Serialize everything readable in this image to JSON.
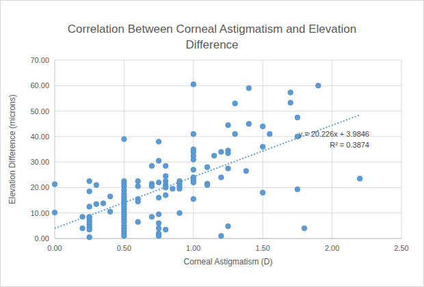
{
  "chart_data": {
    "type": "scatter",
    "title": "Correlation Between Corneal Astigmatism and Elevation Difference",
    "x_label": "Corneal Astigmatism (D)",
    "y_label": "Elevation Difference (microns)",
    "xlim": [
      0,
      2.5
    ],
    "ylim": [
      0,
      70
    ],
    "xticks": [
      {
        "value": 0,
        "label": "0.00"
      },
      {
        "value": 0.5,
        "label": "0.50"
      },
      {
        "value": 1,
        "label": "1.00"
      },
      {
        "value": 1.5,
        "label": "1.50"
      },
      {
        "value": 2,
        "label": "2.00"
      },
      {
        "value": 2.5,
        "label": "2.50"
      }
    ],
    "yticks": [
      {
        "value": 0,
        "label": "0.00"
      },
      {
        "value": 10,
        "label": "10.00"
      },
      {
        "value": 20,
        "label": "20.00"
      },
      {
        "value": 30,
        "label": "30.00"
      },
      {
        "value": 40,
        "label": "40.00"
      },
      {
        "value": 50,
        "label": "50.00"
      },
      {
        "value": 60,
        "label": "60.00"
      },
      {
        "value": 70,
        "label": "70.00"
      }
    ],
    "grid": true,
    "annotations": [
      "y = 20.226x + 3.9846",
      "R² = 0.3874"
    ],
    "series": [
      {
        "type": "scatter",
        "marker": "circle",
        "color": "#5b9bd5",
        "x": [
          0,
          0,
          0.2,
          0.2,
          0.25,
          0.25,
          0.25,
          0.25,
          0.25,
          0.25,
          0.25,
          0.25,
          0.25,
          0.25,
          0.3,
          0.3,
          0.35,
          0.4,
          0.4,
          0.5,
          0.5,
          0.5,
          0.5,
          0.5,
          0.5,
          0.5,
          0.5,
          0.5,
          0.5,
          0.5,
          0.5,
          0.5,
          0.5,
          0.5,
          0.5,
          0.5,
          0.5,
          0.5,
          0.5,
          0.5,
          0.5,
          0.6,
          0.6,
          0.6,
          0.6,
          0.6,
          0.7,
          0.7,
          0.7,
          0.7,
          0.75,
          0.75,
          0.75,
          0.75,
          0.75,
          0.75,
          0.75,
          0.75,
          0.75,
          0.8,
          0.8,
          0.8,
          0.8,
          0.8,
          0.8,
          0.8,
          0.85,
          0.9,
          0.9,
          0.9,
          0.9,
          0.9,
          1,
          1,
          1,
          1,
          1,
          1,
          1,
          1,
          1,
          1,
          1,
          1.1,
          1.1,
          1.1,
          1.15,
          1.2,
          1.2,
          1.2,
          1.25,
          1.25,
          1.25,
          1.25,
          1.25,
          1.3,
          1.3,
          1.38,
          1.4,
          1.4,
          1.5,
          1.5,
          1.5,
          1.55,
          1.7,
          1.7,
          1.75,
          1.75,
          1.75,
          1.8,
          1.9,
          2.2
        ],
        "values": [
          21.3,
          10.2,
          8.5,
          4,
          22.5,
          18.5,
          12.5,
          8.5,
          7.5,
          6.5,
          5.5,
          4.5,
          3.5,
          0.5,
          21,
          13.5,
          13.8,
          16.5,
          10.5,
          39,
          22.5,
          21.5,
          20.5,
          19,
          17.5,
          16.5,
          15.5,
          14.5,
          13.5,
          12.5,
          11.5,
          10.5,
          9.5,
          8.5,
          7.5,
          6.5,
          5,
          4,
          3,
          2,
          1,
          22.5,
          20.5,
          15.5,
          14.5,
          6.5,
          28.5,
          21.5,
          20.5,
          8.5,
          38,
          30.5,
          22,
          16,
          9.5,
          6,
          4,
          2,
          1,
          28.5,
          24.5,
          22.5,
          21,
          20,
          17,
          3.5,
          19.5,
          22.5,
          21.5,
          20.5,
          19.5,
          10,
          60.5,
          41,
          35,
          34,
          32.5,
          31,
          27,
          24,
          23,
          22,
          15.5,
          28,
          21.5,
          21,
          32.5,
          34,
          24,
          1,
          44.5,
          34.5,
          33.5,
          27.5,
          4.8,
          53,
          41,
          26.5,
          59,
          45,
          44,
          36,
          18,
          41,
          57.3,
          53.3,
          47.5,
          40,
          19.3,
          4,
          60,
          23.5
        ]
      },
      {
        "type": "line",
        "line_style": "dotted",
        "color": "#5b9bd5",
        "x": [
          0,
          2.2
        ],
        "values": [
          3.98,
          48.48
        ]
      }
    ]
  }
}
